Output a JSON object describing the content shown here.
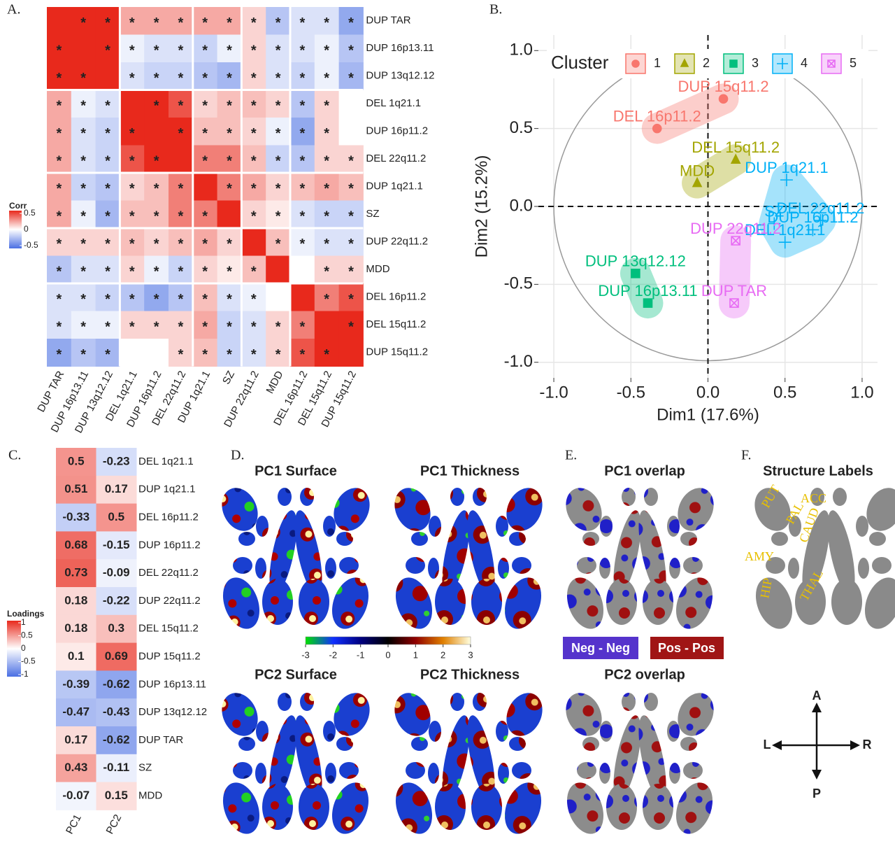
{
  "panel_labels": [
    "A.",
    "B.",
    "C.",
    "D.",
    "E.",
    "F."
  ],
  "chart_data": [
    {
      "type": "heatmap",
      "labels": [
        "DUP TAR",
        "DUP 16p13.11",
        "DUP 13q12.12",
        "DEL 1q21.1",
        "DUP 16p11.2",
        "DEL 22q11.2",
        "DUP 1q21.1",
        "SZ",
        "DUP 22q11.2",
        "MDD",
        "DEL 16p11.2",
        "DEL 15q11.2",
        "DUP 15q11.2"
      ],
      "values": [
        [
          1,
          0.6,
          0.5,
          0.2,
          0.2,
          0.2,
          0.2,
          0.2,
          0.1,
          -0.2,
          -0.1,
          -0.1,
          -0.3
        ],
        [
          0.6,
          1,
          0.7,
          -0.05,
          -0.1,
          -0.1,
          -0.15,
          -0.05,
          0.1,
          -0.1,
          -0.1,
          -0.05,
          -0.2
        ],
        [
          0.5,
          0.7,
          1,
          -0.1,
          -0.15,
          -0.15,
          -0.2,
          -0.25,
          0.1,
          -0.1,
          -0.15,
          -0.05,
          -0.25
        ],
        [
          0.2,
          -0.05,
          -0.1,
          1,
          0.5,
          0.4,
          0.1,
          0.15,
          0.15,
          0.1,
          -0.2,
          0.1,
          0
        ],
        [
          0.2,
          -0.1,
          -0.15,
          0.5,
          1,
          0.5,
          0.15,
          0.15,
          0.1,
          -0.05,
          -0.3,
          0.1,
          0
        ],
        [
          0.2,
          -0.1,
          -0.15,
          0.4,
          0.5,
          1,
          0.3,
          0.3,
          0.15,
          -0.15,
          -0.2,
          0.1,
          0.1
        ],
        [
          0.2,
          -0.15,
          -0.2,
          0.1,
          0.15,
          0.3,
          1,
          0.3,
          0.2,
          0.1,
          0.15,
          0.2,
          0.15
        ],
        [
          0.2,
          -0.05,
          -0.25,
          0.15,
          0.15,
          0.3,
          0.3,
          1,
          0.1,
          0.05,
          -0.1,
          -0.15,
          -0.15
        ],
        [
          0.1,
          0.1,
          0.1,
          0.15,
          0.1,
          0.15,
          0.2,
          0.1,
          1,
          0.15,
          -0.05,
          -0.1,
          -0.1
        ],
        [
          -0.2,
          -0.1,
          -0.1,
          0.1,
          -0.05,
          -0.15,
          0.1,
          0.05,
          0.15,
          1,
          0,
          0.1,
          0.1
        ],
        [
          -0.1,
          -0.1,
          -0.15,
          -0.2,
          -0.3,
          -0.2,
          0.15,
          -0.1,
          -0.05,
          0,
          1,
          0.3,
          0.4
        ],
        [
          -0.1,
          -0.05,
          -0.05,
          0.1,
          0.1,
          0.1,
          0.2,
          -0.15,
          -0.1,
          0.1,
          0.3,
          1,
          0.5
        ],
        [
          -0.3,
          -0.2,
          -0.25,
          0,
          0,
          0.1,
          0.15,
          -0.15,
          -0.1,
          0.1,
          0.4,
          0.5,
          1
        ]
      ],
      "significant": [
        [
          0,
          1,
          1,
          1,
          1,
          1,
          1,
          1,
          1,
          1,
          1,
          1,
          1
        ],
        [
          1,
          0,
          1,
          1,
          1,
          1,
          1,
          1,
          1,
          1,
          1,
          1,
          1
        ],
        [
          1,
          1,
          0,
          1,
          1,
          1,
          1,
          1,
          1,
          1,
          1,
          1,
          1
        ],
        [
          1,
          1,
          1,
          0,
          1,
          1,
          1,
          1,
          1,
          1,
          1,
          1,
          0
        ],
        [
          1,
          1,
          1,
          1,
          0,
          1,
          1,
          1,
          1,
          1,
          1,
          1,
          0
        ],
        [
          1,
          1,
          1,
          1,
          1,
          0,
          1,
          1,
          1,
          1,
          1,
          1,
          1
        ],
        [
          1,
          1,
          1,
          1,
          1,
          1,
          0,
          1,
          1,
          1,
          1,
          1,
          1
        ],
        [
          1,
          1,
          1,
          1,
          1,
          1,
          1,
          0,
          1,
          1,
          1,
          1,
          1
        ],
        [
          1,
          1,
          1,
          1,
          1,
          1,
          1,
          1,
          0,
          1,
          1,
          1,
          1
        ],
        [
          1,
          1,
          1,
          1,
          1,
          1,
          1,
          1,
          1,
          0,
          0,
          1,
          1
        ],
        [
          1,
          1,
          1,
          1,
          1,
          1,
          1,
          1,
          1,
          0,
          0,
          1,
          1
        ],
        [
          1,
          1,
          1,
          1,
          1,
          1,
          1,
          1,
          1,
          1,
          1,
          0,
          1
        ],
        [
          1,
          1,
          1,
          0,
          0,
          1,
          1,
          1,
          1,
          1,
          1,
          1,
          0
        ]
      ],
      "sig_label": "*",
      "group_breaks": [
        3,
        6,
        8,
        10
      ],
      "clim": [
        -0.5,
        0.5
      ],
      "colors": {
        "low": "#4a6fe3",
        "mid": "#ffffff",
        "high": "#e8291c"
      },
      "legend": {
        "title": "Corr",
        "ticks": [
          0.5,
          0,
          -0.5
        ]
      }
    },
    {
      "type": "scatter",
      "x_label": "Dim1 (17.6%)",
      "y_label": "Dim2 (15.2%)",
      "legend_title": "Cluster",
      "xlim": [
        -1.1,
        1.1
      ],
      "ylim": [
        -1.1,
        1.1
      ],
      "xticks": [
        {
          "value": -1,
          "label": "-1.0"
        },
        -0.5,
        {
          "value": 0,
          "label": "0.0"
        },
        0.5,
        {
          "value": 1,
          "label": "1.0"
        }
      ],
      "yticks": [
        {
          "value": -1,
          "label": "-1.0"
        },
        -0.5,
        {
          "value": 0,
          "label": "0.0"
        },
        0.5,
        {
          "value": 1,
          "label": "1.0"
        }
      ],
      "grid": true,
      "circle": true,
      "series": [
        {
          "name": "1",
          "color": "#f8766d",
          "marker": "circle",
          "labels": [
            "DEL 16p11.2",
            "DUP 15q11.2"
          ],
          "x": [
            -0.33,
            0.1
          ],
          "y": [
            0.5,
            0.69
          ]
        },
        {
          "name": "2",
          "color": "#a3a500",
          "marker": "triangle",
          "labels": [
            "DEL 15q11.2",
            "MDD"
          ],
          "x": [
            0.18,
            -0.07
          ],
          "y": [
            0.3,
            0.15
          ]
        },
        {
          "name": "3",
          "color": "#00bf7d",
          "marker": "square",
          "labels": [
            "DUP 13q12.12",
            "DUP 16p13.11"
          ],
          "x": [
            -0.47,
            -0.39
          ],
          "y": [
            -0.43,
            -0.62
          ]
        },
        {
          "name": "4",
          "color": "#00b0f6",
          "marker": "plus",
          "labels": [
            "DUP 1q21.1",
            "DEL 22q11.2",
            "DUP 16p11.2",
            "DEL 1q21.1",
            "SZ"
          ],
          "x": [
            0.51,
            0.73,
            0.68,
            0.5,
            0.43
          ],
          "y": [
            0.17,
            -0.09,
            -0.15,
            -0.23,
            -0.11
          ]
        },
        {
          "name": "5",
          "color": "#e76bf3",
          "marker": "crossed-square",
          "labels": [
            "DUP 22q11.2",
            "DUP TAR"
          ],
          "x": [
            0.18,
            0.17
          ],
          "y": [
            -0.22,
            -0.62
          ]
        }
      ]
    },
    {
      "type": "heatmap-values",
      "rows": [
        "DEL 1q21.1",
        "DUP 1q21.1",
        "DEL 16p11.2",
        "DUP 16p11.2",
        "DEL 22q11.2",
        "DUP 22q11.2",
        "DEL 15q11.2",
        "DUP 15q11.2",
        "DUP 16p13.11",
        "DUP 13q12.12",
        "DUP TAR",
        "SZ",
        "MDD"
      ],
      "columns": [
        "PC1",
        "PC2"
      ],
      "values": [
        [
          0.5,
          -0.23
        ],
        [
          0.51,
          0.17
        ],
        [
          -0.33,
          0.5
        ],
        [
          0.68,
          -0.15
        ],
        [
          0.73,
          -0.09
        ],
        [
          0.18,
          -0.22
        ],
        [
          0.18,
          0.3
        ],
        [
          0.1,
          0.69
        ],
        [
          -0.39,
          -0.62
        ],
        [
          -0.47,
          -0.43
        ],
        [
          0.17,
          -0.62
        ],
        [
          0.43,
          -0.11
        ],
        [
          -0.07,
          0.15
        ]
      ],
      "clim": [
        -1,
        1
      ],
      "colors": {
        "low": "#4a6fe3",
        "mid": "#ffffff",
        "high": "#e8291c"
      },
      "legend": {
        "title": "Loadings",
        "ticks": [
          1,
          0.5,
          0,
          -0.5,
          -1
        ]
      }
    },
    {
      "type": "colorbar",
      "clim": [
        -3,
        3
      ],
      "ticks": [
        -3,
        -2,
        -1,
        0,
        1,
        2,
        3
      ],
      "colors": [
        "#00e000",
        "#1030ff",
        "#000080",
        "#000000",
        "#900000",
        "#e08000",
        "#ffffe0"
      ]
    }
  ],
  "brain_panels": {
    "titles": [
      "PC1 Surface",
      "PC1 Thickness",
      "PC1 overlap",
      "Structure Labels",
      "PC2 Surface",
      "PC2 Thickness",
      "PC2 overlap"
    ],
    "overlap_legend": [
      "Neg - Neg",
      "Pos - Pos"
    ],
    "structure_labels": [
      "PUT",
      "ACC",
      "PAL",
      "CAUD",
      "AMY",
      "HIP",
      "THAL"
    ],
    "compass": [
      "A",
      "P",
      "L",
      "R"
    ]
  }
}
